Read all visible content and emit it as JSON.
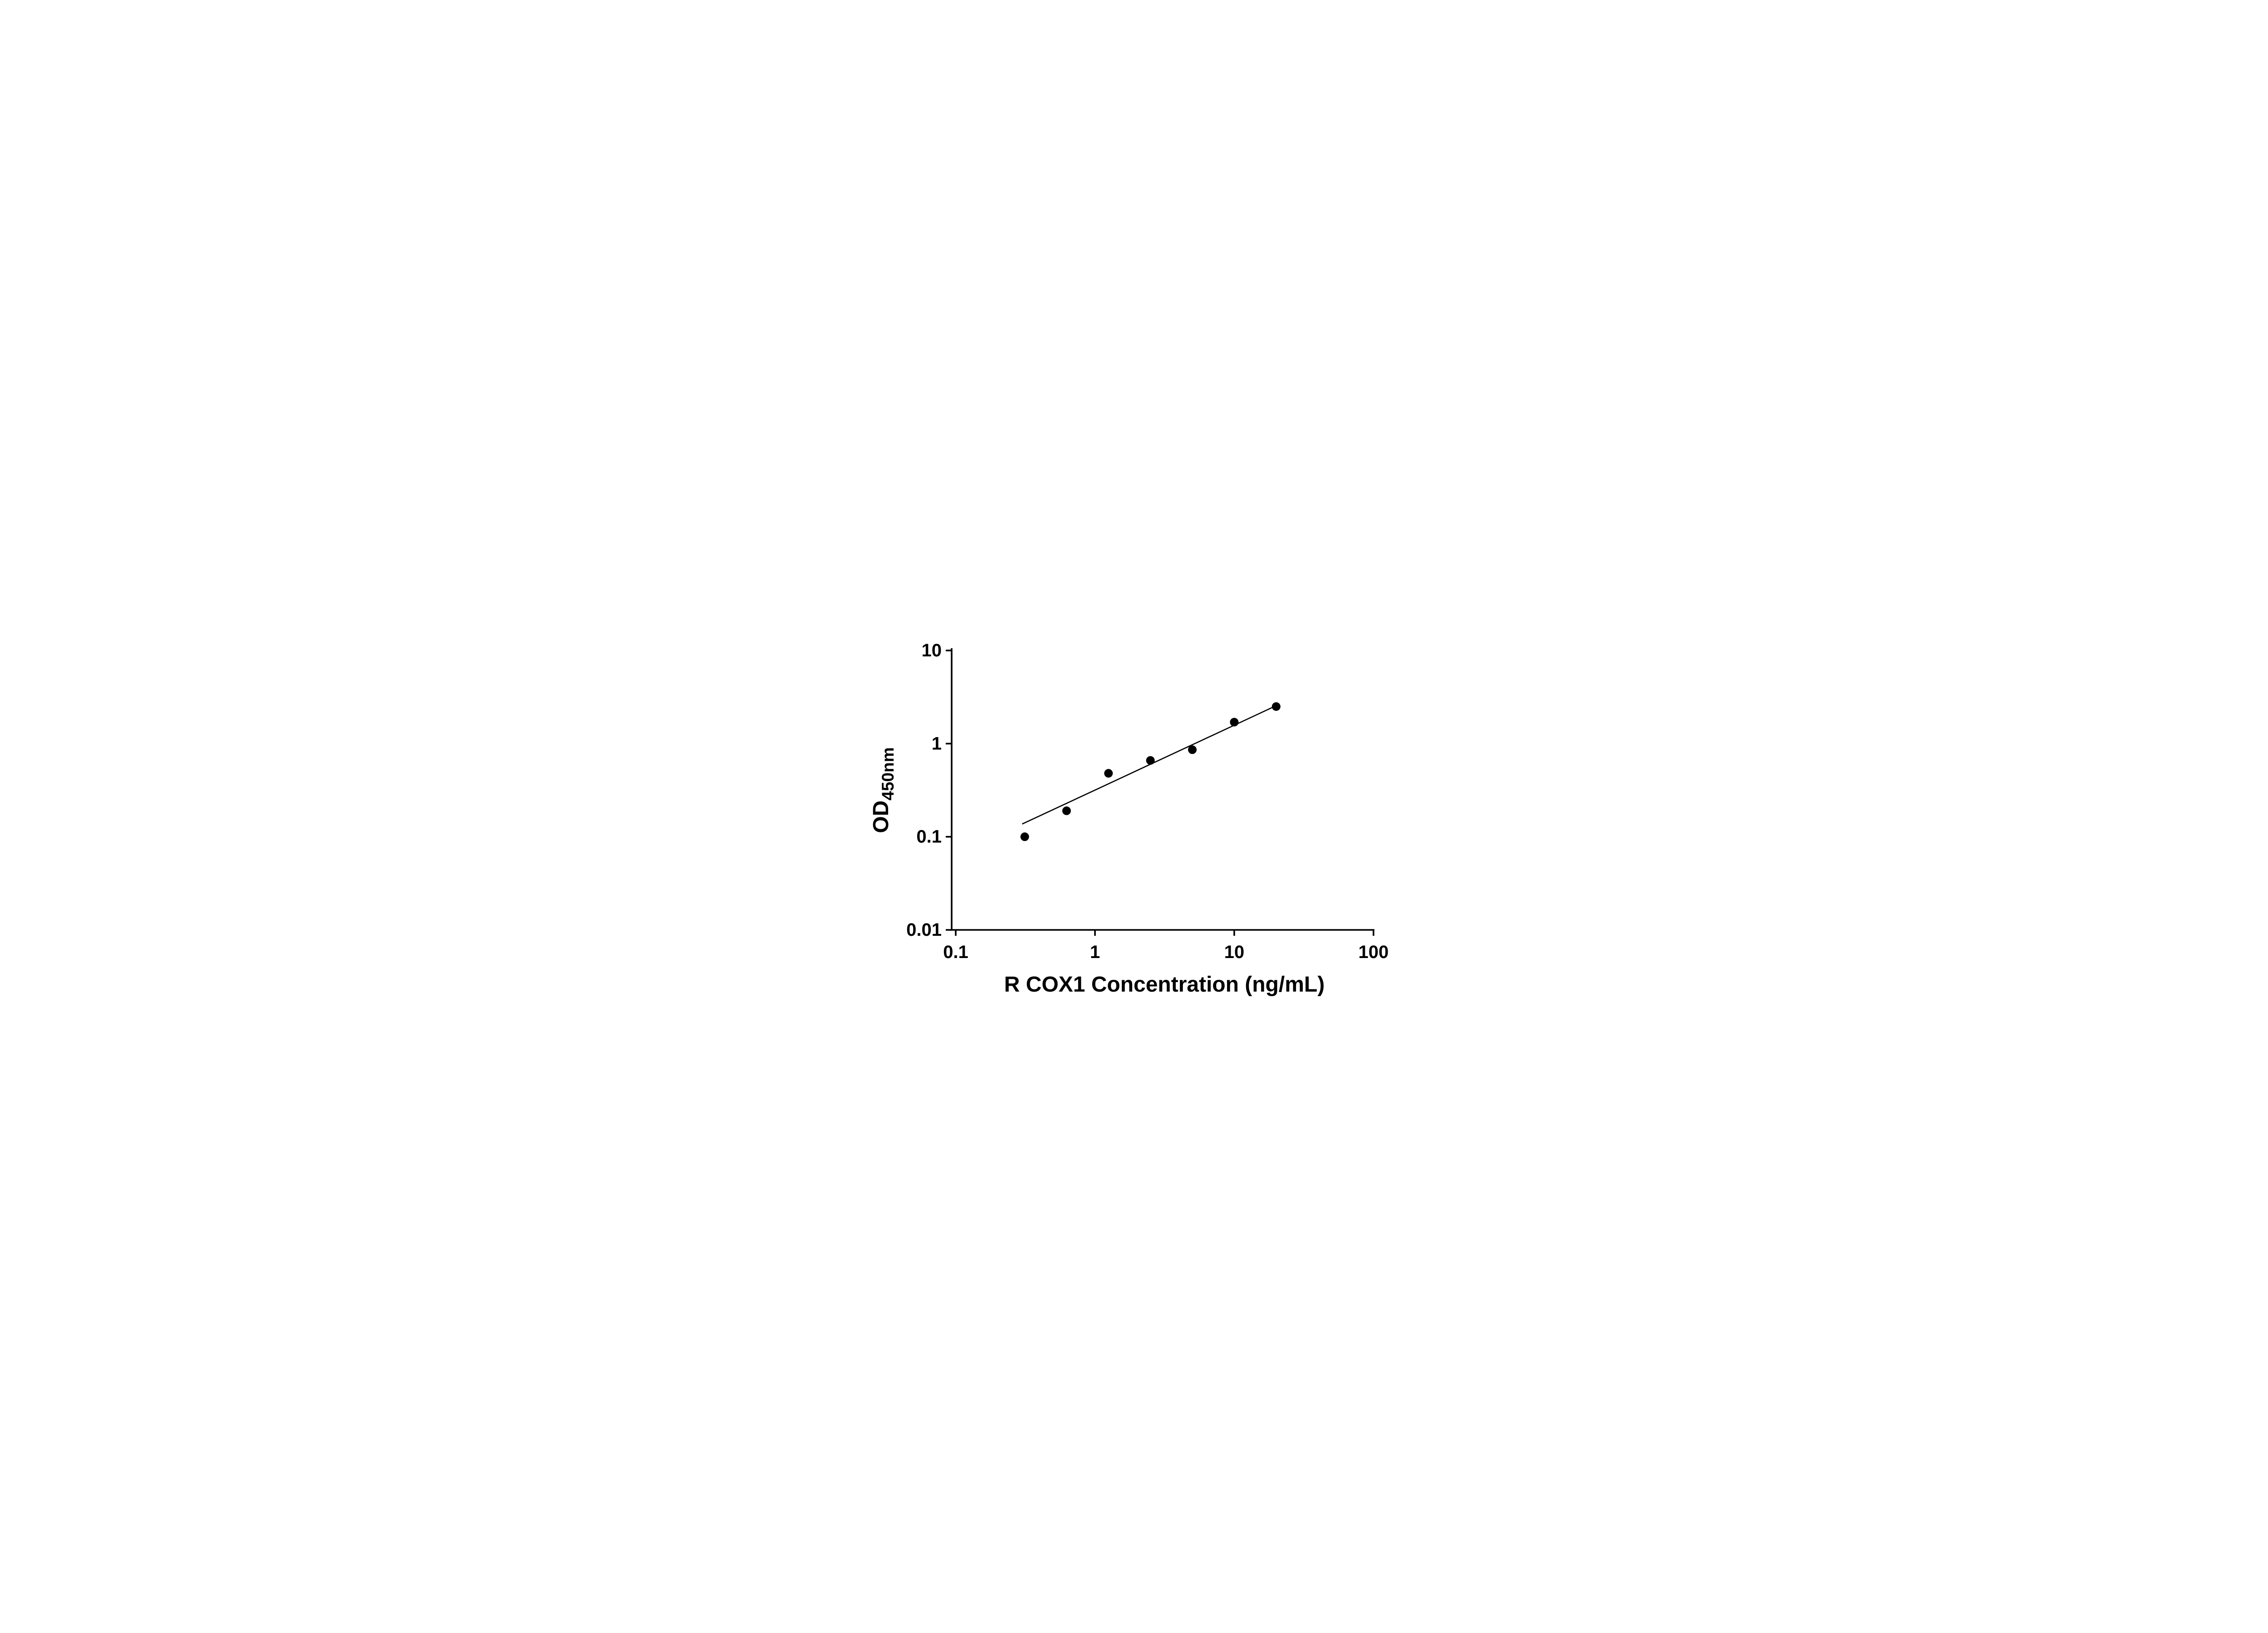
{
  "chart_data": {
    "type": "scatter",
    "title": "",
    "xlabel": "R COX1 Concentration (ng/mL)",
    "ylabel_main": "OD",
    "ylabel_sub": "450nm",
    "x_scale": "log",
    "y_scale": "log",
    "xlim": [
      0.1,
      100
    ],
    "ylim": [
      0.01,
      10
    ],
    "x_ticks": [
      "0.1",
      "1",
      "10",
      "100"
    ],
    "y_ticks": [
      "0.01",
      "0.1",
      "1",
      "10"
    ],
    "points": [
      {
        "x": 0.313,
        "y": 0.1
      },
      {
        "x": 0.625,
        "y": 0.19
      },
      {
        "x": 1.25,
        "y": 0.48
      },
      {
        "x": 2.5,
        "y": 0.66
      },
      {
        "x": 5,
        "y": 0.86
      },
      {
        "x": 10,
        "y": 1.7
      },
      {
        "x": 20,
        "y": 2.5
      }
    ],
    "trendline": {
      "x1": 0.3,
      "y1": 0.137,
      "x2": 20.5,
      "y2": 2.6
    },
    "marker_color": "#000000",
    "line_color": "#000000",
    "axis_color": "#000000",
    "grid": false,
    "legend": false
  }
}
